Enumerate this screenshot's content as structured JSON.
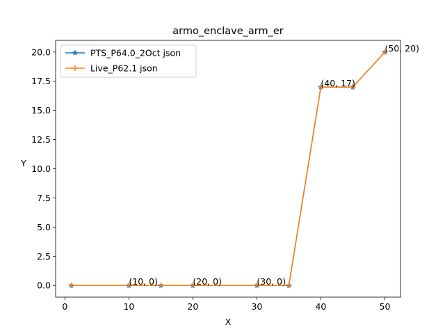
{
  "chart_data": {
    "type": "line",
    "title": "armo_enclave_arm_er",
    "xlabel": "X",
    "ylabel": "Y",
    "xlim": [
      -1.45,
      52.45
    ],
    "ylim": [
      -1.0,
      21.0
    ],
    "xticks": [
      0,
      10,
      20,
      30,
      40,
      50
    ],
    "yticks": [
      0.0,
      2.5,
      5.0,
      7.5,
      10.0,
      12.5,
      15.0,
      17.5,
      20.0
    ],
    "ytick_labels": [
      "0.0",
      "2.5",
      "5.0",
      "7.5",
      "10.0",
      "12.5",
      "15.0",
      "17.5",
      "20.0"
    ],
    "legend_position": "upper-left",
    "series": [
      {
        "name": "PTS_P64.0_2Oct json",
        "color": "#1f77b4",
        "marker": "star",
        "x": [
          1,
          10,
          15,
          20,
          30,
          35,
          40,
          45,
          50
        ],
        "y": [
          0,
          0,
          0,
          0,
          0,
          0,
          17,
          17,
          20
        ]
      },
      {
        "name": "Live_P62.1 json",
        "color": "#ff7f0e",
        "marker": "plus",
        "x": [
          1,
          10,
          15,
          20,
          30,
          35,
          40,
          45,
          50
        ],
        "y": [
          0,
          0,
          0,
          0,
          0,
          0,
          17,
          17,
          20
        ]
      }
    ],
    "annotations": [
      {
        "text": "(10, 0)",
        "x": 10,
        "y": 0
      },
      {
        "text": "(20, 0)",
        "x": 20,
        "y": 0
      },
      {
        "text": "(30, 0)",
        "x": 30,
        "y": 0
      },
      {
        "text": "(40, 17)",
        "x": 40,
        "y": 17
      },
      {
        "text": "(50, 20)",
        "x": 50,
        "y": 20
      }
    ]
  }
}
